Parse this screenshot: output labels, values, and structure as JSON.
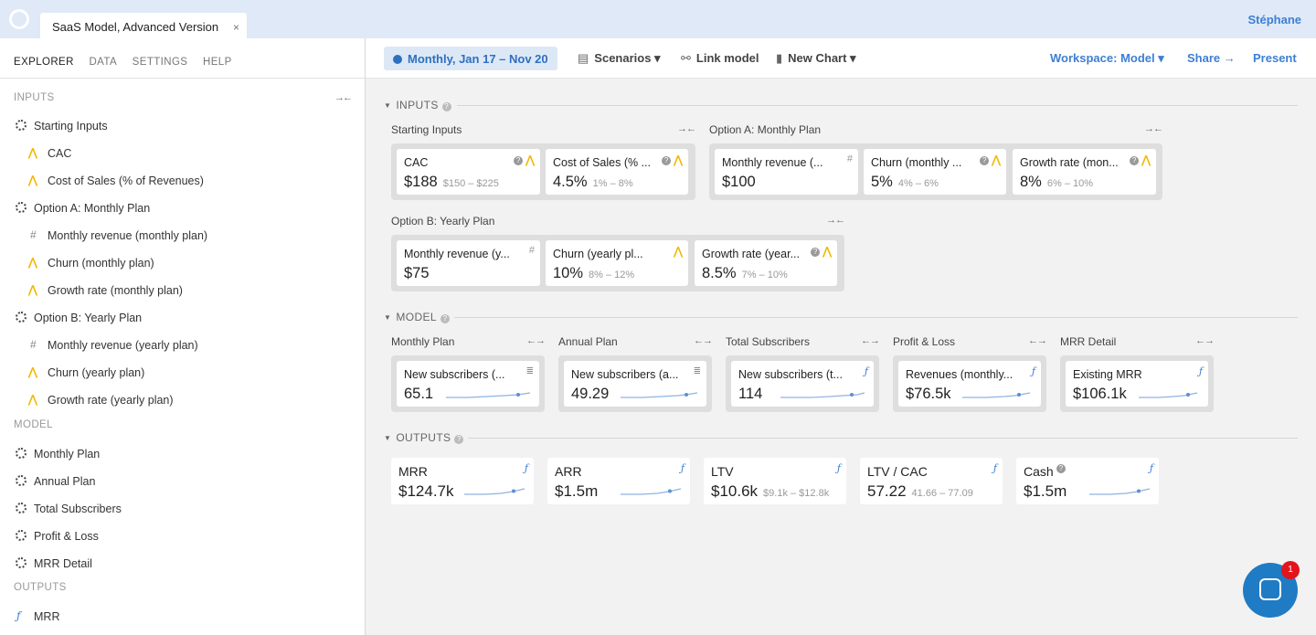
{
  "app": {
    "doc_tab": "SaaS Model, Advanced Version",
    "doc_tab_close": "×",
    "user": "Stéphane"
  },
  "sidebar": {
    "tabs": [
      "EXPLORER",
      "DATA",
      "SETTINGS",
      "HELP"
    ],
    "inputs_label": "INPUTS",
    "model_label": "MODEL",
    "outputs_label": "OUTPUTS",
    "collapse_glyph": "→←",
    "input_items": [
      {
        "label": "Starting Inputs",
        "icon": "group-icon",
        "level": 1
      },
      {
        "label": "CAC",
        "icon": "distribution-icon",
        "level": 2
      },
      {
        "label": "Cost of Sales (% of Revenues)",
        "icon": "distribution-icon",
        "level": 2
      },
      {
        "label": "Option A: Monthly Plan",
        "icon": "group-icon",
        "level": 1
      },
      {
        "label": "Monthly revenue (monthly plan)",
        "icon": "hash-icon",
        "level": 2
      },
      {
        "label": "Churn (monthly plan)",
        "icon": "distribution-icon",
        "level": 2
      },
      {
        "label": "Growth rate (monthly plan)",
        "icon": "distribution-icon",
        "level": 2
      },
      {
        "label": "Option B: Yearly Plan",
        "icon": "group-icon",
        "level": 1
      },
      {
        "label": "Monthly revenue (yearly plan)",
        "icon": "hash-icon",
        "level": 2
      },
      {
        "label": "Churn (yearly plan)",
        "icon": "distribution-icon",
        "level": 2
      },
      {
        "label": "Growth rate (yearly plan)",
        "icon": "distribution-icon",
        "level": 2
      }
    ],
    "model_items": [
      "Monthly Plan",
      "Annual Plan",
      "Total Subscribers",
      "Profit & Loss",
      "MRR Detail"
    ],
    "output_items": [
      "MRR"
    ]
  },
  "toolbar": {
    "date_range": "Monthly, Jan 17 – Nov 20",
    "scenarios": "Scenarios ▾",
    "link_model": "Link model",
    "new_chart": "New Chart ▾",
    "workspace": "Workspace: Model ▾",
    "share": "Share →",
    "present": "Present"
  },
  "canvas": {
    "inputs_header": "INPUTS",
    "model_header": "MODEL",
    "outputs_header": "OUTPUTS",
    "groups": {
      "starting": {
        "title": "Starting Inputs",
        "cards": [
          {
            "title": "CAC",
            "value": "$188",
            "range": "$150 – $225"
          },
          {
            "title": "Cost of Sales (% ...",
            "value": "4.5%",
            "range": "1% – 8%"
          }
        ]
      },
      "option_a": {
        "title": "Option A: Monthly Plan",
        "cards": [
          {
            "title": "Monthly revenue (...",
            "value": "$100",
            "range": ""
          },
          {
            "title": "Churn (monthly ...",
            "value": "5%",
            "range": "4% – 6%"
          },
          {
            "title": "Growth rate (mon...",
            "value": "8%",
            "range": "6% – 10%"
          }
        ]
      },
      "option_b": {
        "title": "Option B: Yearly Plan",
        "cards": [
          {
            "title": "Monthly revenue (y...",
            "value": "$75",
            "range": ""
          },
          {
            "title": "Churn (yearly pl...",
            "value": "10%",
            "range": "8% – 12%"
          },
          {
            "title": "Growth rate (year...",
            "value": "8.5%",
            "range": "7% – 10%"
          }
        ]
      },
      "monthly_plan": {
        "title": "Monthly Plan",
        "cards": [
          {
            "title": "New subscribers (...",
            "value": "65.1"
          }
        ]
      },
      "annual_plan": {
        "title": "Annual Plan",
        "cards": [
          {
            "title": "New subscribers (a...",
            "value": "49.29"
          }
        ]
      },
      "total_subs": {
        "title": "Total Subscribers",
        "cards": [
          {
            "title": "New subscribers (t...",
            "value": "114"
          }
        ]
      },
      "pnl": {
        "title": "Profit & Loss",
        "cards": [
          {
            "title": "Revenues (monthly...",
            "value": "$76.5k"
          }
        ]
      },
      "mrr_detail": {
        "title": "MRR Detail",
        "cards": [
          {
            "title": "Existing MRR",
            "value": "$106.1k"
          }
        ]
      }
    },
    "outputs": [
      {
        "title": "MRR",
        "value": "$124.7k",
        "range": ""
      },
      {
        "title": "ARR",
        "value": "$1.5m",
        "range": ""
      },
      {
        "title": "LTV",
        "value": "$10.6k",
        "range": "$9.1k – $12.8k"
      },
      {
        "title": "LTV / CAC",
        "value": "57.22",
        "range": "41.66 – 77.09"
      },
      {
        "title": "Cash",
        "value": "$1.5m",
        "range": ""
      }
    ]
  },
  "chat": {
    "badge": "1"
  }
}
